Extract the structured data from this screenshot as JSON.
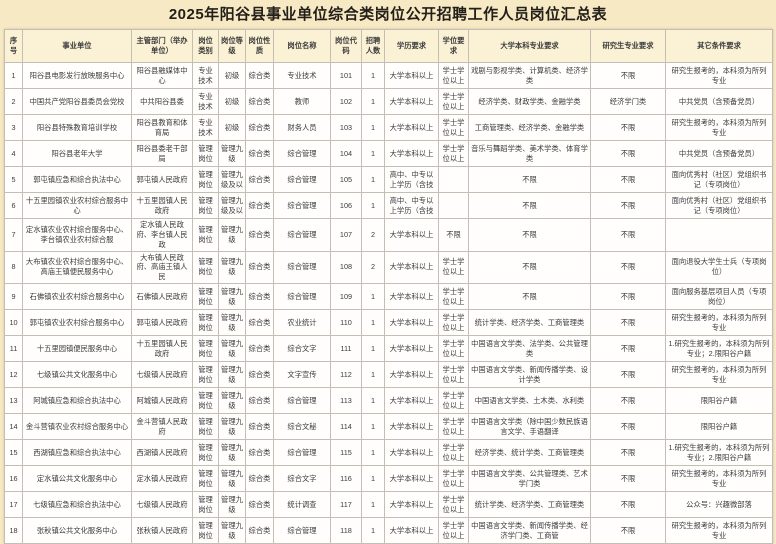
{
  "title": "2025年阳谷县事业单位综合类岗位公开招聘工作人员岗位汇总表",
  "colors": {
    "page_background": "#f7e9c4",
    "header_background": "#fbf2d6",
    "cell_background": "#fffefd",
    "border": "#c3bfb4",
    "title_text": "#221f1a"
  },
  "table": {
    "columns": [
      "序号",
      "事业单位",
      "主管部门（举办单位）",
      "岗位类别",
      "岗位等级",
      "岗位性质",
      "岗位名称",
      "岗位代码",
      "招聘人数",
      "学历要求",
      "学位要求",
      "大学本科专业要求",
      "研究生专业要求",
      "其它条件要求"
    ],
    "rows": [
      [
        "1",
        "阳谷县电影发行放映服务中心",
        "阳谷县融媒体中心",
        "专业技术",
        "初级",
        "综合类",
        "专业技术",
        "101",
        "1",
        "大学本科以上",
        "学士学位以上",
        "戏剧与影视学类、计算机类、经济学类",
        "不限",
        "研究生报考的，本科须为所列专业"
      ],
      [
        "2",
        "中国共产党阳谷县委员会党校",
        "中共阳谷县委",
        "专业技术",
        "初级",
        "综合类",
        "教师",
        "102",
        "1",
        "大学本科以上",
        "学士学位以上",
        "经济学类、财政学类、金融学类",
        "经济学门类",
        "中共党员（含预备党员）"
      ],
      [
        "3",
        "阳谷县特殊教育培训学校",
        "阳谷县教育和体育局",
        "专业技术",
        "初级",
        "综合类",
        "财务人员",
        "103",
        "1",
        "大学本科以上",
        "学士学位以上",
        "工商管理类、经济学类、金融学类",
        "不限",
        "研究生报考的，本科须为所列专业"
      ],
      [
        "4",
        "阳谷县老年大学",
        "阳谷县委老干部局",
        "管理岗位",
        "管理九级",
        "综合类",
        "综合管理",
        "104",
        "1",
        "大学本科以上",
        "学士学位以上",
        "音乐与舞蹈学类、美术学类、体育学类",
        "不限",
        "中共党员（含预备党员）"
      ],
      [
        "5",
        "郭屯镇应急和综合执法中心",
        "郭屯镇人民政府",
        "管理岗位",
        "管理九级及以",
        "综合类",
        "综合管理",
        "105",
        "1",
        "高中、中专以上学历（含技",
        "",
        "不限",
        "不限",
        "面向优秀村（社区）党组织书记（专项岗位）"
      ],
      [
        "6",
        "十五里园镇农业农村综合服务中心",
        "十五里园镇人民政府",
        "管理岗位",
        "管理九级及以",
        "综合类",
        "综合管理",
        "106",
        "1",
        "高中、中专以上学历（含技",
        "",
        "不限",
        "不限",
        "面向优秀村（社区）党组织书记（专项岗位）"
      ],
      [
        "7",
        "定水镇农业农村综合服务中心、李台镇农业农村综合服",
        "定水镇人民政府、李台镇人民政",
        "管理岗位",
        "管理九级",
        "综合类",
        "综合管理",
        "107",
        "2",
        "大学本科以上",
        "不限",
        "不限",
        "不限",
        ""
      ],
      [
        "8",
        "大布镇农业农村综合服务中心、高庙王镇便民服务中心",
        "大布镇人民政府、高庙王镇人民",
        "管理岗位",
        "管理九级",
        "综合类",
        "综合管理",
        "108",
        "2",
        "大学本科以上",
        "学士学位以上",
        "不限",
        "不限",
        "面向退役大学生士兵（专项岗位）"
      ],
      [
        "9",
        "石佛镇农业农村综合服务中心",
        "石佛镇人民政府",
        "管理岗位",
        "管理九级",
        "综合类",
        "综合管理",
        "109",
        "1",
        "大学本科以上",
        "学士学位以上",
        "不限",
        "不限",
        "面向服务基层项目人员（专项岗位）"
      ],
      [
        "10",
        "郭屯镇农业农村综合服务中心",
        "郭屯镇人民政府",
        "管理岗位",
        "管理九级",
        "综合类",
        "农业统计",
        "110",
        "1",
        "大学本科以上",
        "学士学位以上",
        "统计学类、经济学类、工商管理类",
        "不限",
        "研究生报考的，本科须为所列专业"
      ],
      [
        "11",
        "十五里园镇便民服务中心",
        "十五里园镇人民政府",
        "管理岗位",
        "管理九级",
        "综合类",
        "综合文字",
        "111",
        "1",
        "大学本科以上",
        "学士学位以上",
        "中国语言文学类、法学类、公共管理类",
        "不限",
        "1.研究生报考的，本科须为所列专业；2.限阳谷户籍"
      ],
      [
        "12",
        "七级镇公共文化服务中心",
        "七级镇人民政府",
        "管理岗位",
        "管理九级",
        "综合类",
        "文字宣传",
        "112",
        "1",
        "大学本科以上",
        "学士学位以上",
        "中国语言文学类、新闻传播学类、设计学类",
        "不限",
        "研究生报考的，本科须为所列专业"
      ],
      [
        "13",
        "阿城镇应急和综合执法中心",
        "阿城镇人民政府",
        "管理岗位",
        "管理九级",
        "综合类",
        "综合管理",
        "113",
        "1",
        "大学本科以上",
        "学士学位以上",
        "中国语言文学类、土木类、水利类",
        "不限",
        "限阳谷户籍"
      ],
      [
        "14",
        "金斗营镇农业农村综合服务中心",
        "金斗营镇人民政府",
        "管理岗位",
        "管理九级",
        "综合类",
        "综合文秘",
        "114",
        "1",
        "大学本科以上",
        "学士学位以上",
        "中国语言文学类（除中国少数民族语言文学、手语翻译",
        "不限",
        "限阳谷户籍"
      ],
      [
        "15",
        "西湖镇应急和综合执法中心",
        "西湖镇人民政府",
        "管理岗位",
        "管理九级",
        "综合类",
        "综合管理",
        "115",
        "1",
        "大学本科以上",
        "学士学位以上",
        "经济学类、统计学类、工商管理类",
        "不限",
        "1.研究生报考的，本科须为所列专业；2.限阳谷户籍"
      ],
      [
        "16",
        "定水镇公共文化服务中心",
        "定水镇人民政府",
        "管理岗位",
        "管理九级",
        "综合类",
        "综合文字",
        "116",
        "1",
        "大学本科以上",
        "学士学位以上",
        "中国语言文学类、公共管理类、艺术学门类",
        "不限",
        "研究生报考的，本科须为所列专业"
      ],
      [
        "17",
        "七级镇应急和综合执法中心",
        "七级镇人民政府",
        "管理岗位",
        "管理九级",
        "综合类",
        "统计调查",
        "117",
        "1",
        "大学本科以上",
        "学士学位以上",
        "统计学类、经济学类、工商管理类",
        "不限",
        "公众号：兴趣微部落"
      ],
      [
        "18",
        "张秋镇公共文化服务中心",
        "张秋镇人民政府",
        "管理岗位",
        "管理九级",
        "综合类",
        "综合管理",
        "118",
        "1",
        "大学本科以上",
        "学士学位以上",
        "中国语言文学类、新闻传播学类、经济学门类、工商管",
        "不限",
        "研究生报考的，本科须为所列专业"
      ]
    ]
  }
}
